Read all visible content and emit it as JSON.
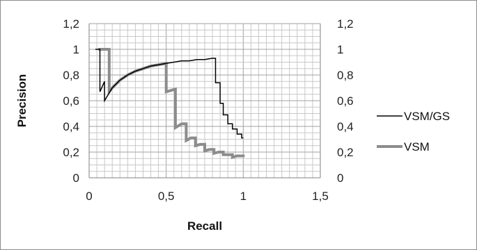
{
  "chart_data": {
    "type": "line",
    "title": "",
    "xlabel": "Recall",
    "ylabel": "Precision",
    "xlim": [
      0,
      1.5
    ],
    "ylim": [
      0,
      1.2
    ],
    "x_major_ticks": [
      "0",
      "0,5",
      "1",
      "1,5"
    ],
    "y_ticks": [
      "0",
      "0,2",
      "0,4",
      "0,6",
      "0,8",
      "1",
      "1,2"
    ],
    "y_ticks_right": [
      "0",
      "0,2",
      "0,4",
      "0,6",
      "0,8",
      "1",
      "1,2"
    ],
    "x_minor_step": 0.05,
    "y_minor_step": 0.05,
    "grid": true,
    "legend_position": "right",
    "series": [
      {
        "name": "VSM/GS",
        "color": "#000000",
        "line_width": 1.5,
        "points": [
          [
            0.04,
            1.0
          ],
          [
            0.07,
            1.0
          ],
          [
            0.07,
            0.67
          ],
          [
            0.1,
            0.75
          ],
          [
            0.1,
            0.6
          ],
          [
            0.15,
            0.7
          ],
          [
            0.2,
            0.76
          ],
          [
            0.25,
            0.8
          ],
          [
            0.3,
            0.83
          ],
          [
            0.35,
            0.85
          ],
          [
            0.4,
            0.87
          ],
          [
            0.45,
            0.88
          ],
          [
            0.5,
            0.89
          ],
          [
            0.55,
            0.9
          ],
          [
            0.6,
            0.91
          ],
          [
            0.65,
            0.91
          ],
          [
            0.7,
            0.92
          ],
          [
            0.75,
            0.92
          ],
          [
            0.8,
            0.93
          ],
          [
            0.82,
            0.93
          ],
          [
            0.82,
            0.74
          ],
          [
            0.85,
            0.74
          ],
          [
            0.85,
            0.58
          ],
          [
            0.87,
            0.58
          ],
          [
            0.87,
            0.49
          ],
          [
            0.9,
            0.49
          ],
          [
            0.9,
            0.42
          ],
          [
            0.93,
            0.42
          ],
          [
            0.93,
            0.38
          ],
          [
            0.96,
            0.38
          ],
          [
            0.96,
            0.34
          ],
          [
            0.99,
            0.34
          ],
          [
            0.99,
            0.31
          ],
          [
            1.0,
            0.31
          ]
        ]
      },
      {
        "name": "VSM",
        "color": "#8c8c8c",
        "line_width": 4,
        "points": [
          [
            0.06,
            1.0
          ],
          [
            0.13,
            1.0
          ],
          [
            0.13,
            0.67
          ],
          [
            0.15,
            0.7
          ],
          [
            0.2,
            0.76
          ],
          [
            0.25,
            0.8
          ],
          [
            0.3,
            0.83
          ],
          [
            0.35,
            0.85
          ],
          [
            0.4,
            0.87
          ],
          [
            0.45,
            0.88
          ],
          [
            0.5,
            0.89
          ],
          [
            0.5,
            0.67
          ],
          [
            0.56,
            0.69
          ],
          [
            0.56,
            0.39
          ],
          [
            0.6,
            0.42
          ],
          [
            0.63,
            0.42
          ],
          [
            0.63,
            0.29
          ],
          [
            0.66,
            0.31
          ],
          [
            0.69,
            0.31
          ],
          [
            0.69,
            0.25
          ],
          [
            0.72,
            0.26
          ],
          [
            0.75,
            0.26
          ],
          [
            0.75,
            0.21
          ],
          [
            0.78,
            0.22
          ],
          [
            0.81,
            0.22
          ],
          [
            0.81,
            0.19
          ],
          [
            0.84,
            0.2
          ],
          [
            0.87,
            0.2
          ],
          [
            0.87,
            0.18
          ],
          [
            0.9,
            0.18
          ],
          [
            0.93,
            0.18
          ],
          [
            0.93,
            0.16
          ],
          [
            0.96,
            0.17
          ],
          [
            1.0,
            0.17
          ],
          [
            1.0,
            0.16
          ]
        ]
      }
    ]
  }
}
